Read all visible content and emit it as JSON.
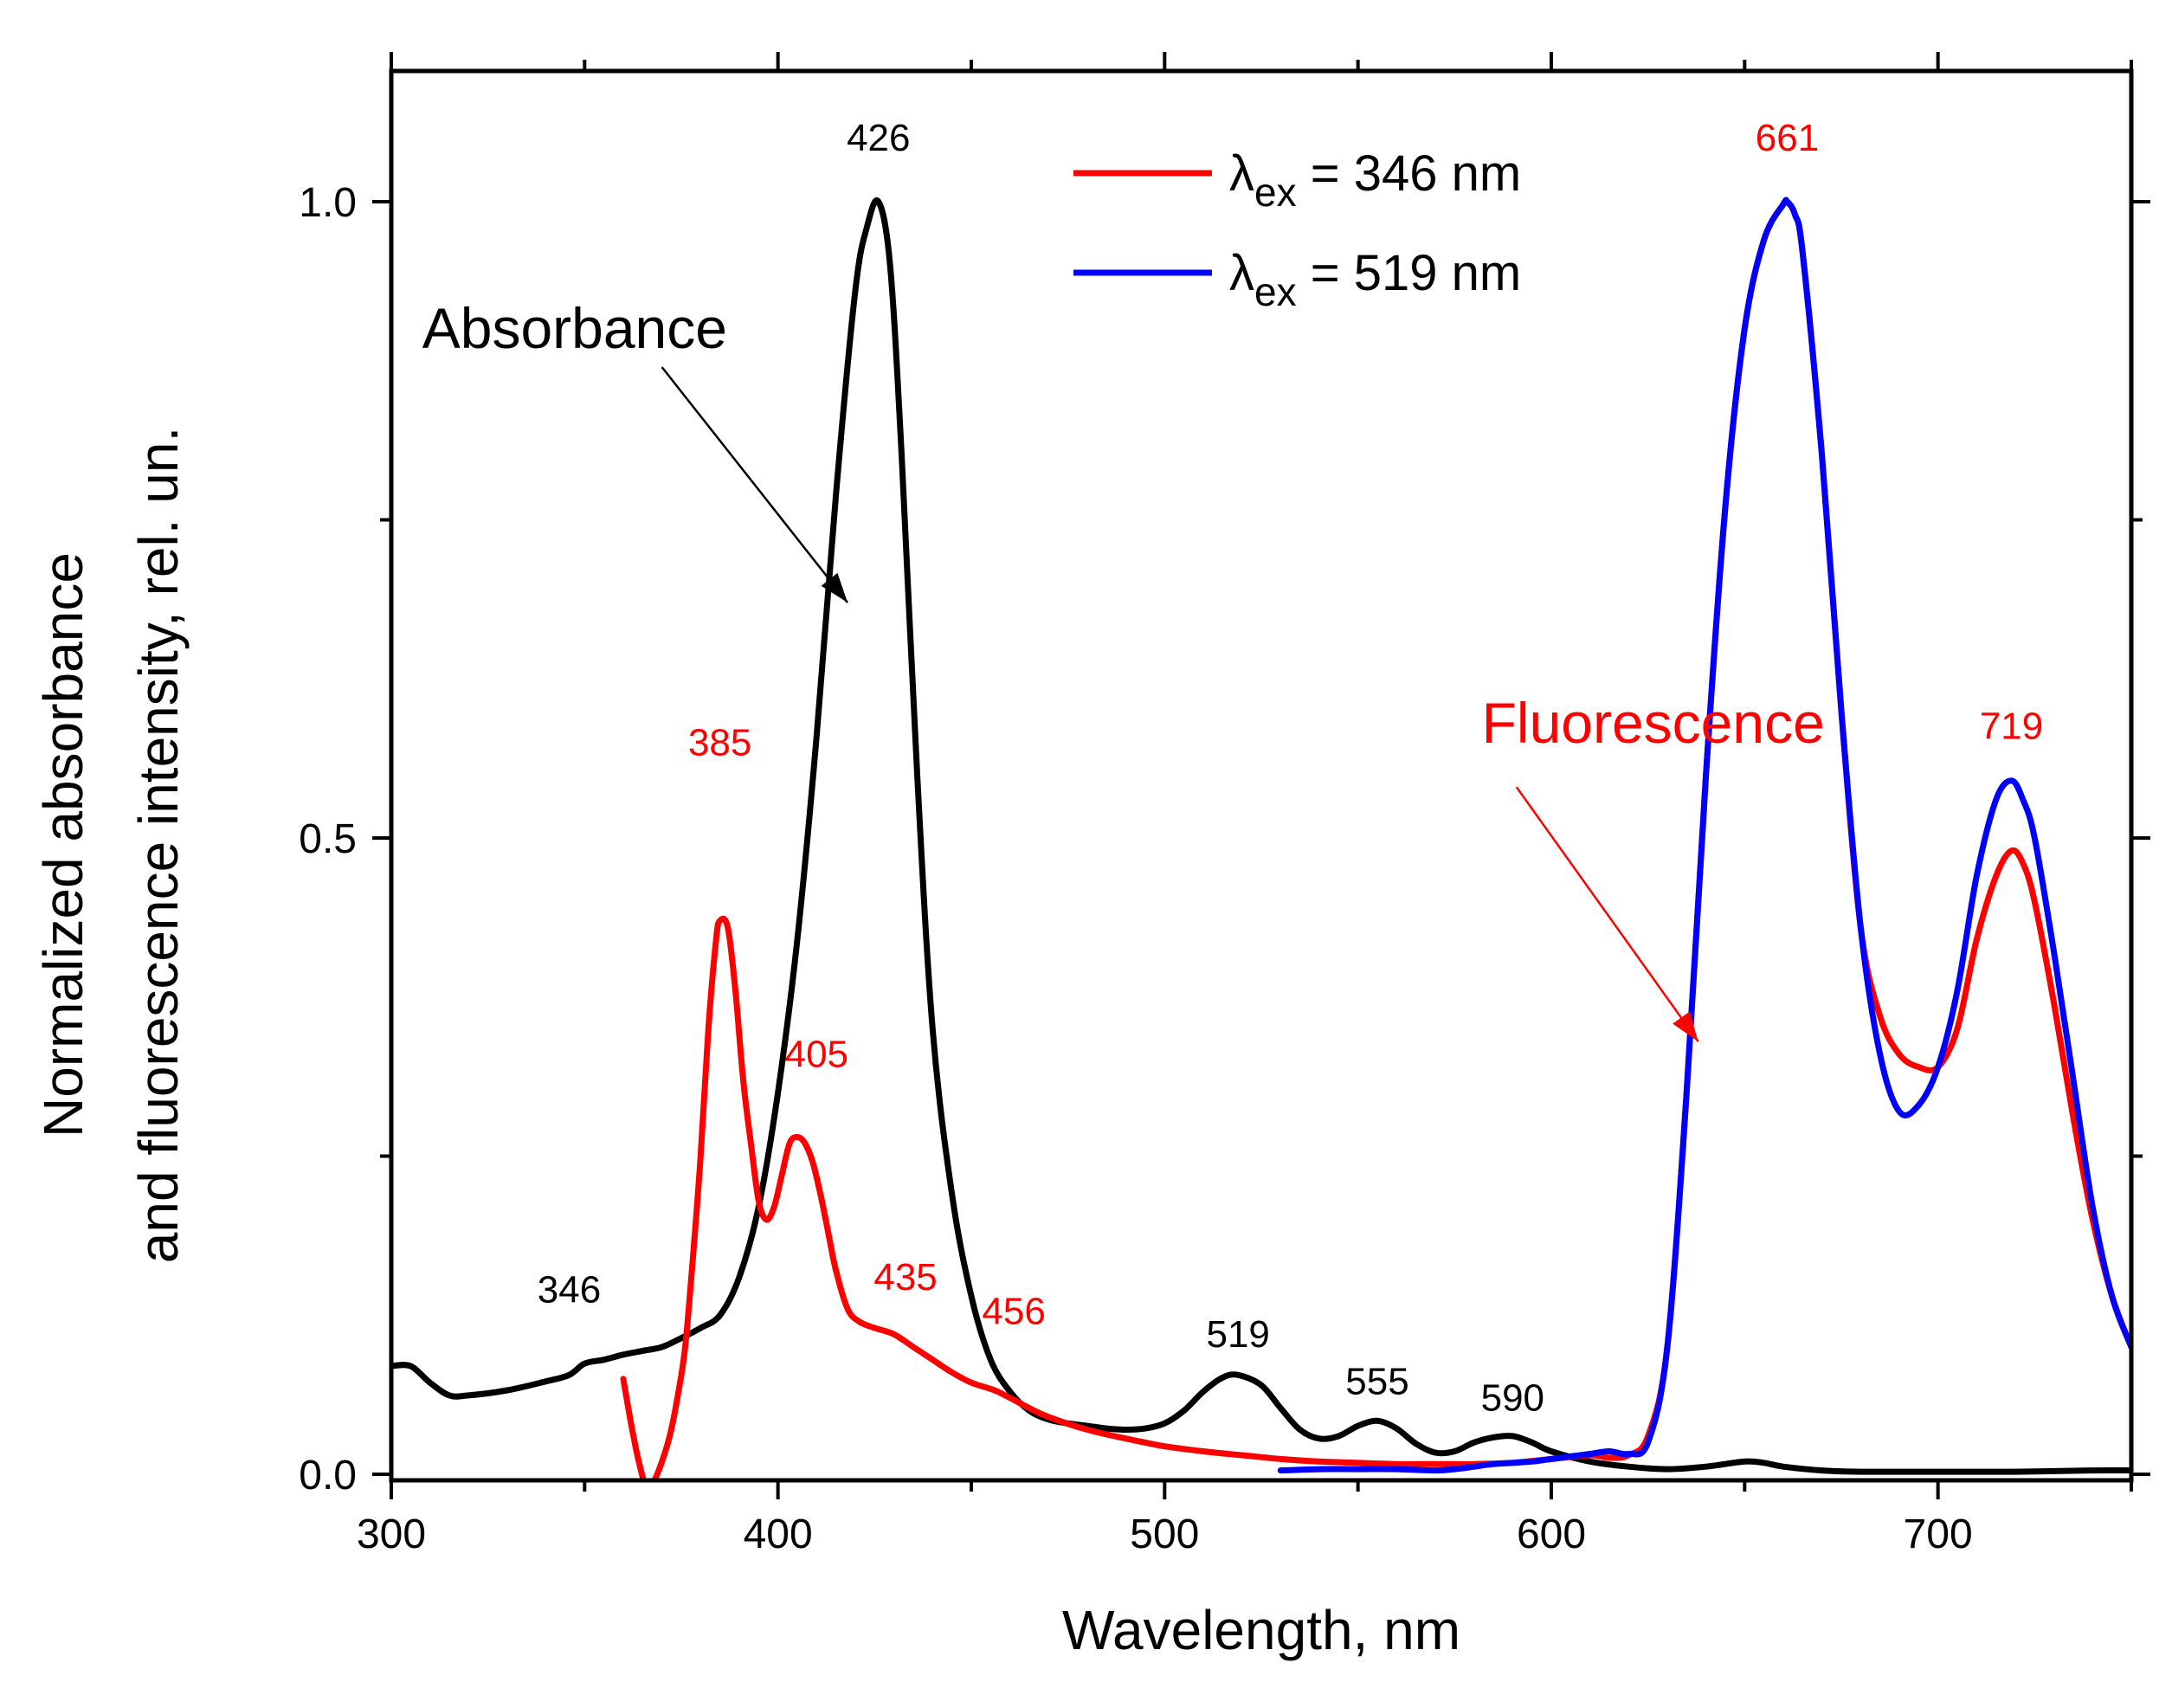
{
  "chart_data": {
    "type": "line",
    "title": "",
    "xlabel": "Wavelength, nm",
    "ylabel_line1": "Normalized absorbance",
    "ylabel_line2": "and fluorescence intensity, rel. un.",
    "xlim": [
      300,
      750
    ],
    "ylim": [
      0,
      1.1
    ],
    "xticks": [
      300,
      400,
      500,
      600,
      700
    ],
    "xtick_labels": [
      "300",
      "400",
      "500",
      "600",
      "700"
    ],
    "yticks": [
      0.0,
      0.5,
      1.0
    ],
    "ytick_labels": [
      "0.0",
      "0.5",
      "1.0"
    ],
    "grid": false,
    "legend_position": "top-right",
    "legend": [
      {
        "series": "fluor_346",
        "prefix": "λ",
        "subscript": "ex",
        "suffix": " = 346 nm"
      },
      {
        "series": "fluor_519",
        "prefix": "λ",
        "subscript": "ex",
        "suffix": " = 519 nm"
      }
    ],
    "series": [
      {
        "name": "Absorbance",
        "color": "#000000",
        "x": [
          300,
          305,
          310,
          315,
          320,
          330,
          340,
          346,
          350,
          355,
          360,
          365,
          370,
          375,
          380,
          385,
          390,
          395,
          400,
          405,
          410,
          415,
          420,
          423,
          426,
          429,
          432,
          436,
          440,
          445,
          450,
          455,
          460,
          465,
          470,
          475,
          480,
          485,
          490,
          495,
          500,
          505,
          510,
          515,
          519,
          525,
          530,
          535,
          540,
          545,
          550,
          555,
          560,
          565,
          570,
          575,
          580,
          585,
          590,
          595,
          600,
          610,
          620,
          630,
          640,
          650,
          655,
          660,
          670,
          680,
          700,
          720,
          740,
          750
        ],
        "y": [
          0.085,
          0.085,
          0.072,
          0.062,
          0.062,
          0.066,
          0.073,
          0.078,
          0.087,
          0.09,
          0.094,
          0.097,
          0.1,
          0.107,
          0.115,
          0.125,
          0.155,
          0.21,
          0.3,
          0.42,
          0.58,
          0.77,
          0.93,
          0.98,
          1.0,
          0.95,
          0.8,
          0.55,
          0.35,
          0.22,
          0.14,
          0.09,
          0.065,
          0.05,
          0.043,
          0.04,
          0.038,
          0.036,
          0.035,
          0.036,
          0.04,
          0.05,
          0.065,
          0.076,
          0.078,
          0.07,
          0.052,
          0.035,
          0.028,
          0.03,
          0.038,
          0.042,
          0.036,
          0.024,
          0.017,
          0.018,
          0.025,
          0.029,
          0.03,
          0.025,
          0.018,
          0.01,
          0.006,
          0.004,
          0.006,
          0.01,
          0.009,
          0.006,
          0.003,
          0.002,
          0.002,
          0.002,
          0.003,
          0.003
        ]
      },
      {
        "name": "fluor_346",
        "color": "#ff0000",
        "x": [
          360,
          362,
          364,
          366,
          368,
          370,
          372,
          374,
          376,
          378,
          380,
          382,
          384,
          385,
          387,
          389,
          391,
          393,
          395,
          397,
          399,
          401,
          403,
          405,
          407,
          409,
          411,
          413,
          415,
          418,
          421,
          425,
          430,
          435,
          440,
          445,
          450,
          456,
          460,
          465,
          470,
          480,
          490,
          500,
          510,
          520,
          530,
          540,
          550,
          560,
          570,
          580,
          590,
          600,
          610,
          615,
          620,
          625,
          630,
          635,
          640,
          645,
          650,
          655,
          660,
          661,
          663,
          665,
          670,
          675,
          680,
          685,
          690,
          695,
          700,
          705,
          710,
          715,
          719,
          722,
          725,
          730,
          735,
          740,
          745,
          750
        ],
        "y": [
          0.075,
          0.04,
          0.01,
          -0.01,
          -0.005,
          0.01,
          0.03,
          0.06,
          0.1,
          0.17,
          0.25,
          0.35,
          0.42,
          0.435,
          0.43,
          0.38,
          0.31,
          0.26,
          0.215,
          0.2,
          0.21,
          0.235,
          0.26,
          0.265,
          0.26,
          0.245,
          0.22,
          0.19,
          0.16,
          0.13,
          0.12,
          0.115,
          0.11,
          0.1,
          0.09,
          0.08,
          0.072,
          0.066,
          0.06,
          0.052,
          0.045,
          0.035,
          0.028,
          0.022,
          0.018,
          0.015,
          0.012,
          0.01,
          0.009,
          0.008,
          0.008,
          0.008,
          0.009,
          0.012,
          0.015,
          0.013,
          0.015,
          0.03,
          0.1,
          0.3,
          0.55,
          0.76,
          0.9,
          0.97,
          0.998,
          1.0,
          0.99,
          0.96,
          0.8,
          0.6,
          0.43,
          0.36,
          0.33,
          0.32,
          0.32,
          0.35,
          0.42,
          0.47,
          0.49,
          0.48,
          0.45,
          0.37,
          0.28,
          0.2,
          0.14,
          0.1
        ]
      },
      {
        "name": "fluor_519",
        "color": "#0000ff",
        "x": [
          530,
          540,
          550,
          560,
          570,
          575,
          580,
          585,
          590,
          595,
          600,
          605,
          610,
          615,
          620,
          625,
          630,
          635,
          640,
          645,
          650,
          655,
          660,
          661,
          663,
          665,
          670,
          675,
          680,
          685,
          690,
          695,
          700,
          705,
          710,
          715,
          719,
          722,
          725,
          730,
          735,
          740,
          745,
          750
        ],
        "y": [
          0.003,
          0.004,
          0.004,
          0.004,
          0.003,
          0.004,
          0.006,
          0.008,
          0.009,
          0.01,
          0.012,
          0.014,
          0.016,
          0.018,
          0.016,
          0.025,
          0.1,
          0.3,
          0.55,
          0.76,
          0.9,
          0.97,
          0.998,
          1.0,
          0.99,
          0.96,
          0.8,
          0.6,
          0.43,
          0.33,
          0.285,
          0.29,
          0.32,
          0.38,
          0.47,
          0.53,
          0.545,
          0.53,
          0.5,
          0.41,
          0.31,
          0.21,
          0.14,
          0.1
        ]
      }
    ],
    "peak_labels": [
      {
        "text": "426",
        "x": 426,
        "y": 1.04,
        "color": "#000000"
      },
      {
        "text": "346",
        "x": 346,
        "y": 0.135,
        "color": "#000000"
      },
      {
        "text": "519",
        "x": 519,
        "y": 0.1,
        "color": "#000000"
      },
      {
        "text": "555",
        "x": 555,
        "y": 0.063,
        "color": "#000000"
      },
      {
        "text": "590",
        "x": 590,
        "y": 0.05,
        "color": "#000000"
      },
      {
        "text": "385",
        "x": 385,
        "y": 0.565,
        "color": "#ff0000"
      },
      {
        "text": "405",
        "x": 410,
        "y": 0.32,
        "color": "#ff0000"
      },
      {
        "text": "435",
        "x": 433,
        "y": 0.145,
        "color": "#ff0000"
      },
      {
        "text": "456",
        "x": 461,
        "y": 0.118,
        "color": "#ff0000"
      },
      {
        "text": "661",
        "x": 661,
        "y": 1.04,
        "color": "#ff0000"
      },
      {
        "text": "719",
        "x": 719,
        "y": 0.578,
        "color": "#ff0000"
      }
    ],
    "annotations": [
      {
        "text": "Absorbance",
        "x": 308,
        "y": 0.885,
        "color": "#000000",
        "arrow_from": [
          370,
          0.87
        ],
        "arrow_to": [
          418,
          0.685
        ]
      },
      {
        "text": "Fluorescence",
        "x": 582,
        "y": 0.575,
        "color": "#ff0000",
        "arrow_from": [
          591,
          0.54
        ],
        "arrow_to": [
          638,
          0.34
        ]
      }
    ]
  }
}
